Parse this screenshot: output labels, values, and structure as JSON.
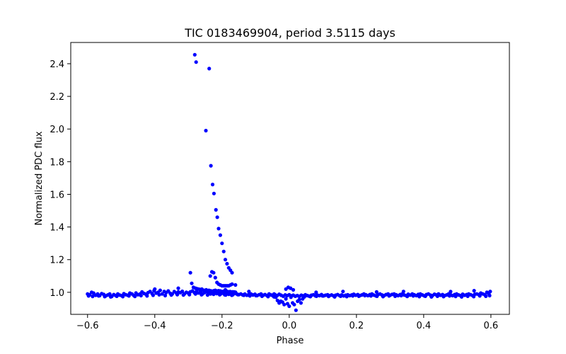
{
  "chart_data": {
    "type": "scatter",
    "title": "TIC 0183469904, period 3.5115 days",
    "xlabel": "Phase",
    "ylabel": "Normalized PDC flux",
    "xlim": [
      -0.65,
      0.655
    ],
    "ylim": [
      0.865,
      2.53
    ],
    "xticks": [
      -0.6,
      -0.4,
      -0.2,
      0.0,
      0.2,
      0.4,
      0.6
    ],
    "xtick_labels": [
      "−0.6",
      "−0.4",
      "−0.2",
      "0.0",
      "0.2",
      "0.4",
      "0.6"
    ],
    "yticks": [
      1.0,
      1.2,
      1.4,
      1.6,
      1.8,
      2.0,
      2.2,
      2.4
    ],
    "ytick_labels": [
      "1.0",
      "1.2",
      "1.4",
      "1.6",
      "1.8",
      "2.0",
      "2.2",
      "2.4"
    ],
    "grid": false,
    "marker_color": "#0000ff",
    "series": [
      {
        "x": [
          -0.6,
          -0.594,
          -0.588,
          -0.582,
          -0.576,
          -0.57,
          -0.564,
          -0.558,
          -0.552,
          -0.546,
          -0.54,
          -0.534,
          -0.528,
          -0.522,
          -0.516,
          -0.51,
          -0.504,
          -0.498,
          -0.492,
          -0.486,
          -0.48,
          -0.474,
          -0.468,
          -0.462,
          -0.456,
          -0.45,
          -0.444,
          -0.438,
          -0.432,
          -0.426,
          -0.42,
          -0.414,
          -0.408,
          -0.402,
          -0.396,
          -0.39,
          -0.384,
          -0.378,
          -0.372,
          -0.366,
          -0.36,
          -0.354,
          -0.348,
          -0.342,
          -0.336,
          -0.33,
          -0.324,
          -0.318,
          -0.312,
          -0.306,
          -0.3,
          -0.294,
          -0.288,
          -0.282,
          -0.276,
          -0.27,
          -0.264,
          -0.258,
          -0.252,
          -0.246,
          -0.24,
          -0.234,
          -0.228,
          -0.222,
          -0.216,
          -0.21,
          -0.204,
          -0.198,
          -0.192,
          -0.186,
          -0.18,
          -0.174,
          -0.168,
          -0.162,
          -0.156,
          -0.15,
          -0.144,
          -0.138,
          -0.132,
          -0.126,
          -0.12,
          -0.114,
          -0.108,
          -0.102,
          -0.096,
          -0.09,
          -0.084,
          -0.078,
          -0.072,
          -0.066,
          -0.06,
          -0.054,
          -0.048,
          -0.042,
          -0.036,
          -0.03,
          -0.024,
          -0.018,
          -0.012,
          -0.006,
          0.0,
          0.006,
          0.012,
          0.018,
          0.024,
          0.03,
          0.036,
          0.042,
          0.048,
          0.054,
          0.06,
          0.066,
          0.072,
          0.078,
          0.084,
          0.09,
          0.096,
          0.102,
          0.108,
          0.114,
          0.12,
          0.126,
          0.132,
          0.138,
          0.144,
          0.15,
          0.156,
          0.162,
          0.168,
          0.174,
          0.18,
          0.186,
          0.192,
          0.198,
          0.204,
          0.21,
          0.216,
          0.222,
          0.228,
          0.234,
          0.24,
          0.246,
          0.252,
          0.258,
          0.264,
          0.27,
          0.276,
          0.282,
          0.288,
          0.294,
          0.3,
          0.306,
          0.312,
          0.318,
          0.324,
          0.33,
          0.336,
          0.342,
          0.348,
          0.354,
          0.36,
          0.366,
          0.372,
          0.378,
          0.384,
          0.39,
          0.396,
          0.402,
          0.408,
          0.414,
          0.42,
          0.426,
          0.432,
          0.438,
          0.444,
          0.45,
          0.456,
          0.462,
          0.468,
          0.474,
          0.48,
          0.486,
          0.492,
          0.498,
          0.504,
          0.51,
          0.516,
          0.522,
          0.528,
          0.534,
          0.54,
          0.546,
          0.552,
          0.558,
          0.564,
          0.57,
          0.576,
          0.582,
          0.588,
          0.594,
          0.598,
          -0.597,
          -0.585,
          -0.567,
          -0.549,
          -0.531,
          -0.513,
          -0.495,
          -0.477,
          -0.459,
          -0.441,
          -0.423,
          -0.405,
          -0.387,
          -0.369,
          -0.351,
          -0.333,
          -0.315,
          -0.297,
          -0.279,
          -0.261,
          -0.243,
          -0.225,
          -0.207,
          -0.189,
          -0.171,
          -0.153,
          -0.135,
          -0.117,
          -0.099,
          -0.081,
          -0.063,
          -0.045,
          0.045,
          0.063,
          0.081,
          0.099,
          0.117,
          0.135,
          0.153,
          0.171,
          0.189,
          0.207,
          0.225,
          0.243,
          0.261,
          0.279,
          0.297,
          0.315,
          0.333,
          0.351,
          0.369,
          0.387,
          0.405,
          0.423,
          0.441,
          0.459,
          0.477,
          0.495,
          0.513,
          0.531,
          0.549,
          0.567,
          0.585,
          0.596,
          -0.4,
          -0.33,
          -0.26,
          -0.19,
          -0.12,
          0.08,
          0.16,
          0.26,
          0.34,
          0.48,
          0.55,
          -0.29,
          -0.294,
          -0.285,
          -0.279,
          -0.274,
          -0.27,
          -0.266,
          -0.262,
          -0.259,
          -0.255,
          -0.251,
          -0.247,
          -0.243,
          -0.239,
          -0.236,
          -0.232,
          -0.228,
          -0.224,
          -0.22,
          -0.215,
          -0.21,
          -0.205,
          -0.2,
          -0.195,
          -0.19,
          -0.185,
          -0.18,
          -0.176,
          -0.172,
          -0.168,
          -0.164,
          -0.16,
          -0.281,
          -0.277,
          -0.248,
          -0.238,
          -0.233,
          -0.228,
          -0.224,
          -0.218,
          -0.214,
          -0.21,
          -0.205,
          -0.2,
          -0.195,
          -0.19,
          -0.185,
          -0.18,
          -0.175,
          -0.17,
          -0.165,
          -0.16,
          -0.16,
          -0.17,
          -0.175,
          -0.18,
          -0.185,
          -0.19,
          -0.195,
          -0.2,
          -0.205,
          -0.21,
          -0.215,
          -0.22,
          -0.225,
          -0.23,
          -0.235,
          -0.045,
          -0.04,
          -0.035,
          -0.03,
          -0.025,
          -0.02,
          -0.015,
          -0.01,
          -0.005,
          0.0,
          0.005,
          0.01,
          0.015,
          0.02,
          0.025,
          0.03,
          0.035,
          0.04,
          0.045,
          -0.01,
          -0.003,
          0.004,
          0.012
        ],
        "y": [
          0.99,
          0.985,
          1.0,
          0.995,
          0.982,
          0.99,
          0.98,
          0.992,
          0.987,
          0.978,
          0.984,
          0.99,
          0.975,
          0.986,
          0.98,
          0.99,
          0.983,
          0.979,
          0.991,
          0.985,
          0.982,
          0.995,
          0.99,
          0.98,
          0.996,
          0.985,
          0.99,
          1.002,
          0.993,
          0.988,
          0.998,
          1.005,
          0.992,
          1.01,
          0.995,
          1.0,
          1.012,
          0.99,
          1.005,
          0.998,
          1.008,
          0.994,
          0.99,
          1.004,
          0.996,
          1.002,
          0.998,
          1.006,
          0.99,
          1.0,
          0.995,
          1.003,
          1.008,
          0.998,
          1.004,
          0.996,
          1.002,
          0.99,
          0.998,
          1.004,
          0.995,
          0.99,
          1.0,
          0.996,
          0.992,
          0.998,
          0.99,
          0.995,
          0.985,
          0.992,
          0.988,
          0.99,
          0.985,
          0.993,
          0.99,
          0.986,
          0.99,
          0.984,
          0.989,
          0.982,
          0.987,
          0.99,
          0.984,
          0.988,
          0.98,
          0.985,
          0.99,
          0.982,
          0.986,
          0.98,
          0.99,
          0.984,
          0.978,
          0.985,
          0.98,
          0.988,
          0.982,
          0.976,
          0.984,
          0.98,
          0.985,
          0.978,
          0.982,
          0.976,
          0.98,
          0.975,
          0.982,
          0.978,
          0.985,
          0.98,
          0.976,
          0.982,
          0.985,
          0.978,
          0.983,
          0.98,
          0.986,
          0.978,
          0.982,
          0.985,
          0.98,
          0.984,
          0.978,
          0.982,
          0.986,
          0.98,
          0.984,
          0.978,
          0.982,
          0.985,
          0.98,
          0.984,
          0.988,
          0.982,
          0.986,
          0.98,
          0.984,
          0.99,
          0.985,
          0.98,
          0.986,
          0.99,
          0.983,
          0.978,
          0.986,
          0.99,
          0.984,
          0.98,
          0.986,
          0.99,
          0.982,
          0.987,
          0.99,
          0.985,
          0.98,
          0.986,
          0.99,
          0.984,
          0.98,
          0.988,
          0.983,
          0.99,
          0.985,
          0.98,
          0.987,
          0.99,
          0.984,
          0.978,
          0.986,
          0.99,
          0.983,
          0.98,
          0.988,
          0.984,
          0.99,
          0.982,
          0.986,
          0.98,
          0.984,
          0.99,
          0.985,
          0.98,
          0.986,
          0.99,
          0.984,
          0.98,
          0.988,
          0.982,
          0.986,
          0.99,
          0.985,
          0.98,
          0.988,
          0.99,
          0.986,
          0.995,
          0.99,
          0.985,
          1.0,
          0.99,
          1.005,
          0.978,
          0.975,
          0.978,
          0.974,
          0.972,
          0.976,
          0.974,
          0.978,
          0.975,
          0.98,
          0.978,
          0.982,
          0.985,
          0.98,
          0.984,
          0.986,
          0.984,
          0.986,
          0.99,
          0.985,
          0.984,
          0.988,
          0.985,
          0.984,
          0.982,
          0.986,
          0.982,
          0.978,
          0.98,
          0.976,
          0.974,
          0.972,
          0.972,
          0.974,
          0.976,
          0.978,
          0.975,
          0.972,
          0.976,
          0.974,
          0.978,
          0.976,
          0.98,
          0.978,
          0.976,
          0.974,
          0.978,
          0.976,
          0.98,
          0.975,
          0.978,
          0.974,
          0.976,
          0.972,
          0.976,
          0.974,
          0.978,
          0.975,
          0.972,
          0.976,
          0.974,
          0.978,
          0.976,
          0.98,
          1.02,
          1.025,
          1.02,
          1.015,
          1.005,
          1.0,
          1.005,
          1.002,
          1.005,
          1.004,
          1.01,
          1.055,
          1.12,
          1.03,
          1.025,
          1.022,
          1.02,
          1.018,
          1.016,
          1.014,
          1.012,
          1.012,
          1.015,
          1.01,
          1.012,
          1.01,
          1.008,
          1.006,
          1.01,
          1.012,
          1.008,
          1.01,
          1.008,
          1.005,
          1.006,
          1.004,
          1.006,
          1.003,
          1.004,
          1.002,
          1.003,
          1.002,
          1.0,
          2.455,
          2.41,
          1.99,
          2.37,
          1.775,
          1.66,
          1.605,
          1.505,
          1.46,
          1.39,
          1.35,
          1.3,
          1.25,
          1.2,
          1.175,
          1.15,
          1.135,
          1.12,
          1.0,
          1.0,
          1.045,
          1.05,
          1.045,
          1.04,
          1.04,
          1.04,
          1.04,
          1.04,
          1.045,
          1.05,
          1.06,
          1.09,
          1.12,
          1.125,
          1.1,
          0.99,
          0.97,
          0.95,
          0.935,
          0.945,
          0.94,
          0.925,
          0.96,
          0.93,
          0.915,
          0.97,
          0.935,
          0.925,
          0.89,
          0.945,
          0.955,
          0.935,
          0.96,
          0.975,
          1.02,
          1.03,
          1.025,
          1.015
        ]
      }
    ]
  }
}
